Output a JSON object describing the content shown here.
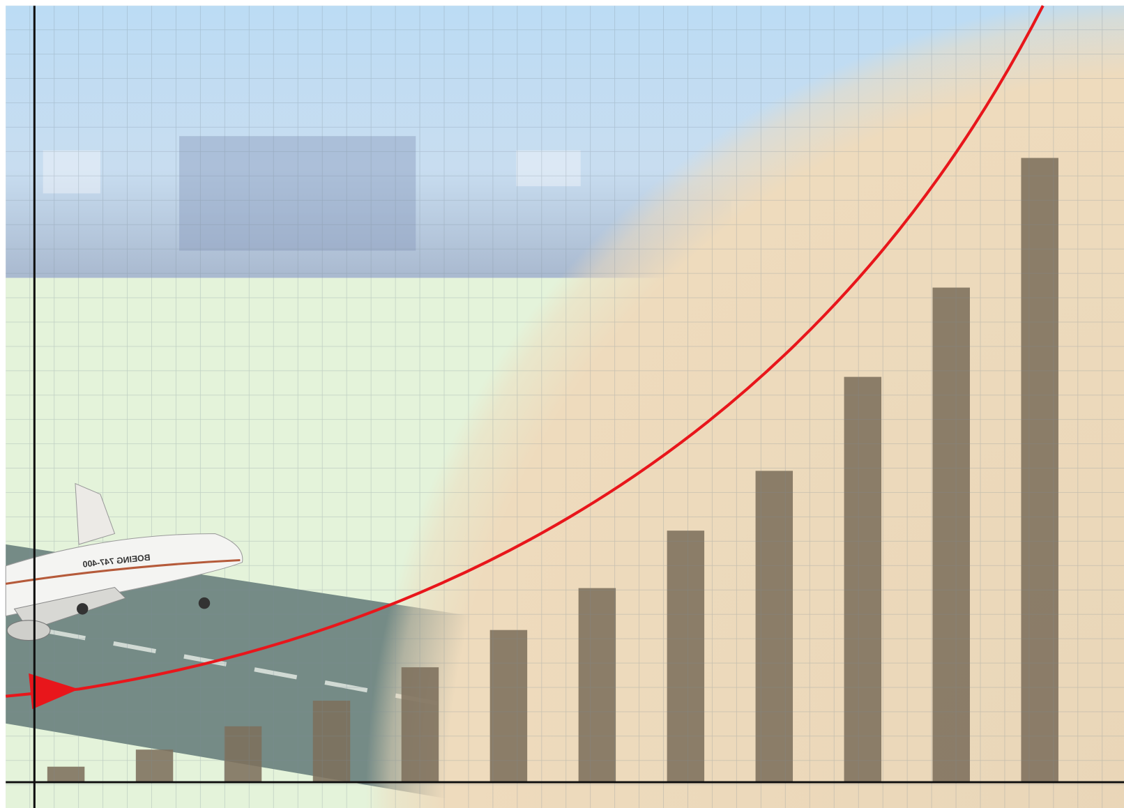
{
  "chart_data": {
    "type": "bar",
    "categories": [
      null,
      null,
      null,
      null,
      null,
      null,
      null,
      null,
      null,
      null,
      null,
      null
    ],
    "values": [
      2,
      4.2,
      7.2,
      10.5,
      14.8,
      19.6,
      25,
      32.4,
      40.1,
      52.2,
      63.7,
      80.4
    ],
    "color": "#7d705c",
    "ylim": [
      0,
      100
    ]
  },
  "illustration": {
    "plane_text": "BOEING 747-400"
  }
}
